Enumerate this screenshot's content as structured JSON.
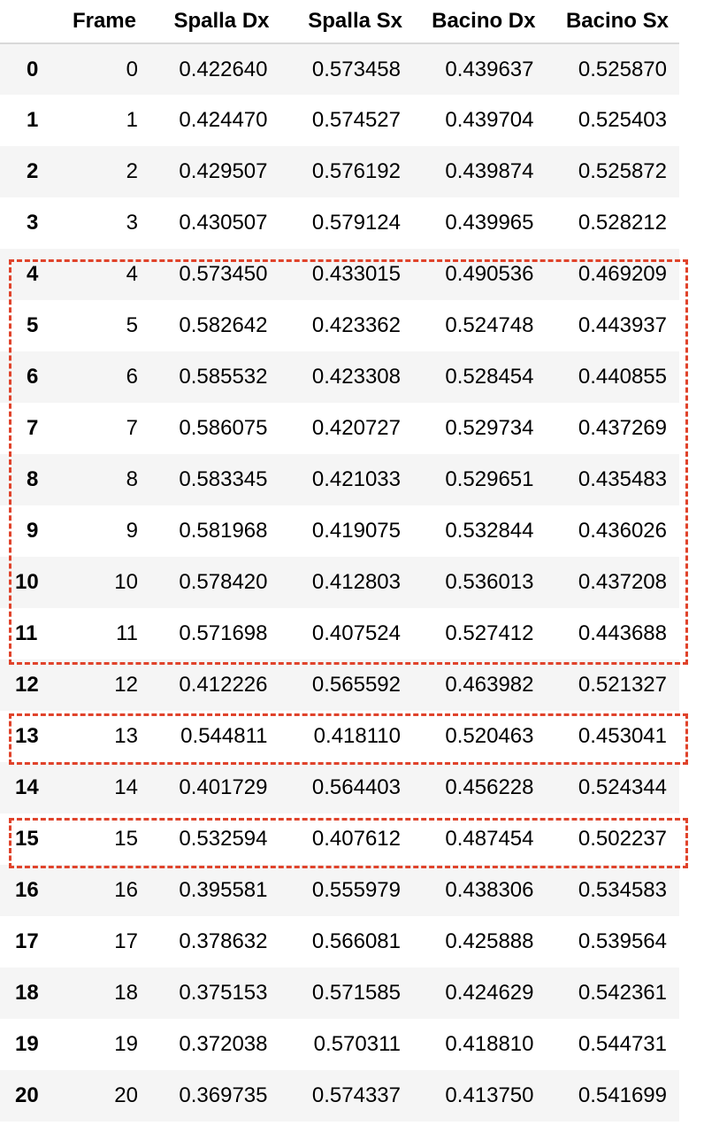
{
  "table": {
    "columns": [
      "",
      "Frame",
      "Spalla Dx",
      "Spalla Sx",
      "Bacino Dx",
      "Bacino Sx"
    ],
    "rows": [
      {
        "index": "0",
        "cells": [
          "0",
          "0.422640",
          "0.573458",
          "0.439637",
          "0.525870"
        ]
      },
      {
        "index": "1",
        "cells": [
          "1",
          "0.424470",
          "0.574527",
          "0.439704",
          "0.525403"
        ]
      },
      {
        "index": "2",
        "cells": [
          "2",
          "0.429507",
          "0.576192",
          "0.439874",
          "0.525872"
        ]
      },
      {
        "index": "3",
        "cells": [
          "3",
          "0.430507",
          "0.579124",
          "0.439965",
          "0.528212"
        ]
      },
      {
        "index": "4",
        "cells": [
          "4",
          "0.573450",
          "0.433015",
          "0.490536",
          "0.469209"
        ]
      },
      {
        "index": "5",
        "cells": [
          "5",
          "0.582642",
          "0.423362",
          "0.524748",
          "0.443937"
        ]
      },
      {
        "index": "6",
        "cells": [
          "6",
          "0.585532",
          "0.423308",
          "0.528454",
          "0.440855"
        ]
      },
      {
        "index": "7",
        "cells": [
          "7",
          "0.586075",
          "0.420727",
          "0.529734",
          "0.437269"
        ]
      },
      {
        "index": "8",
        "cells": [
          "8",
          "0.583345",
          "0.421033",
          "0.529651",
          "0.435483"
        ]
      },
      {
        "index": "9",
        "cells": [
          "9",
          "0.581968",
          "0.419075",
          "0.532844",
          "0.436026"
        ]
      },
      {
        "index": "10",
        "cells": [
          "10",
          "0.578420",
          "0.412803",
          "0.536013",
          "0.437208"
        ]
      },
      {
        "index": "11",
        "cells": [
          "11",
          "0.571698",
          "0.407524",
          "0.527412",
          "0.443688"
        ]
      },
      {
        "index": "12",
        "cells": [
          "12",
          "0.412226",
          "0.565592",
          "0.463982",
          "0.521327"
        ]
      },
      {
        "index": "13",
        "cells": [
          "13",
          "0.544811",
          "0.418110",
          "0.520463",
          "0.453041"
        ]
      },
      {
        "index": "14",
        "cells": [
          "14",
          "0.401729",
          "0.564403",
          "0.456228",
          "0.524344"
        ]
      },
      {
        "index": "15",
        "cells": [
          "15",
          "0.532594",
          "0.407612",
          "0.487454",
          "0.502237"
        ]
      },
      {
        "index": "16",
        "cells": [
          "16",
          "0.395581",
          "0.555979",
          "0.438306",
          "0.534583"
        ]
      },
      {
        "index": "17",
        "cells": [
          "17",
          "0.378632",
          "0.566081",
          "0.425888",
          "0.539564"
        ]
      },
      {
        "index": "18",
        "cells": [
          "18",
          "0.375153",
          "0.571585",
          "0.424629",
          "0.542361"
        ]
      },
      {
        "index": "19",
        "cells": [
          "19",
          "0.372038",
          "0.570311",
          "0.418810",
          "0.544731"
        ]
      },
      {
        "index": "20",
        "cells": [
          "20",
          "0.369735",
          "0.574337",
          "0.413750",
          "0.541699"
        ]
      }
    ]
  },
  "highlights": {
    "color": "#e0432b",
    "groups": [
      {
        "rows": [
          "4",
          "5",
          "6",
          "7",
          "8",
          "9",
          "10",
          "11"
        ]
      },
      {
        "rows": [
          "13"
        ]
      },
      {
        "rows": [
          "15"
        ]
      }
    ]
  },
  "colors": {
    "odd_row_background": "#f5f5f5",
    "even_row_background": "#ffffff",
    "header_border": "#d8d8d8"
  }
}
